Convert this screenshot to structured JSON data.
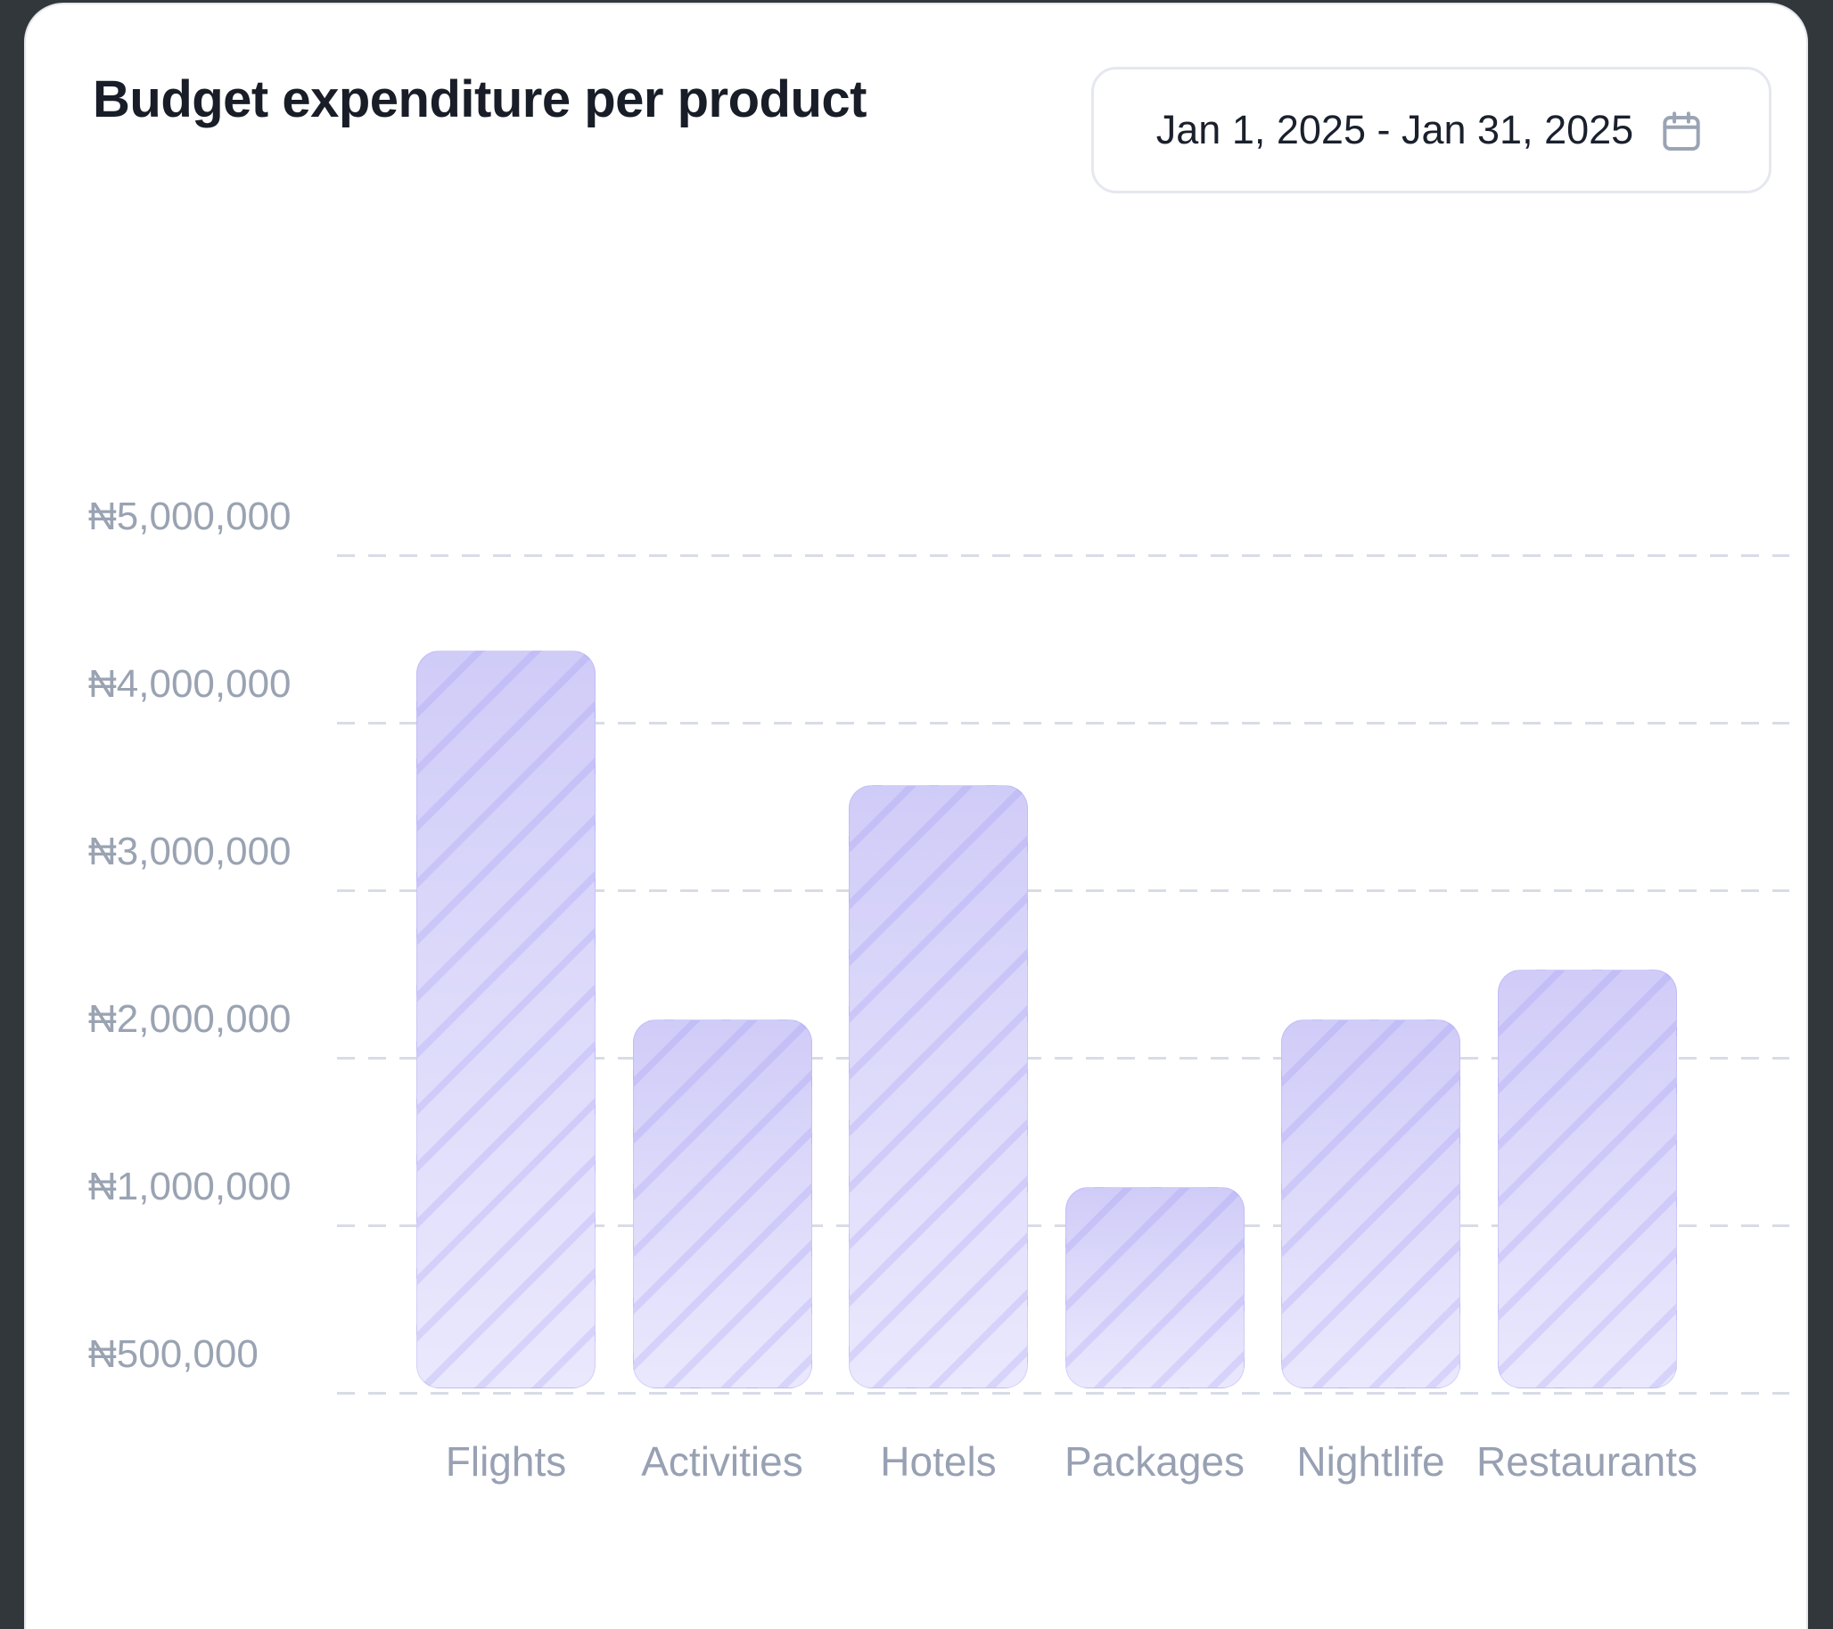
{
  "window": {
    "background": "#31373B"
  },
  "card": {
    "background": "#FFFFFF",
    "border_color": "#E4E7EC"
  },
  "header": {
    "title": "Budget expenditure per product",
    "date_range": {
      "label": "Jan 1, 2025 - Jan 31, 2025"
    }
  },
  "chart_data": {
    "type": "bar",
    "title": "Budget expenditure per product",
    "categories": [
      "Flights",
      "Activities",
      "Hotels",
      "Packages",
      "Nightlife",
      "Restaurants"
    ],
    "values": [
      4200000,
      2000000,
      3400000,
      1000000,
      2000000,
      2300000
    ],
    "currency_symbol": "₦",
    "y_ticks": [
      {
        "label": "₦5,000,000",
        "value": 5000000
      },
      {
        "label": "₦4,000,000",
        "value": 4000000
      },
      {
        "label": "₦3,000,000",
        "value": 3000000
      },
      {
        "label": "₦2,000,000",
        "value": 2000000
      },
      {
        "label": "₦1,000,000",
        "value": 1000000
      },
      {
        "label": "₦500,000",
        "value": 500000
      }
    ],
    "ylim": [
      500000,
      5000000
    ],
    "xlabel": "",
    "ylabel": "",
    "grid": "dashed-horizontal",
    "legend": "none",
    "bar_style": {
      "fill_top": "#D0CCF8",
      "fill_bottom": "#EAE8FD",
      "hatch": "diagonal",
      "hatch_color": "rgba(140,131,240,0.20)"
    }
  },
  "colors": {
    "title": "#181D27",
    "axis_label": "#9AA3B2",
    "gridline": "#D8DCE6",
    "chip_border": "#E5E8EE",
    "chip_text": "#1A202C",
    "calendar_icon": "#9AA4B4"
  }
}
